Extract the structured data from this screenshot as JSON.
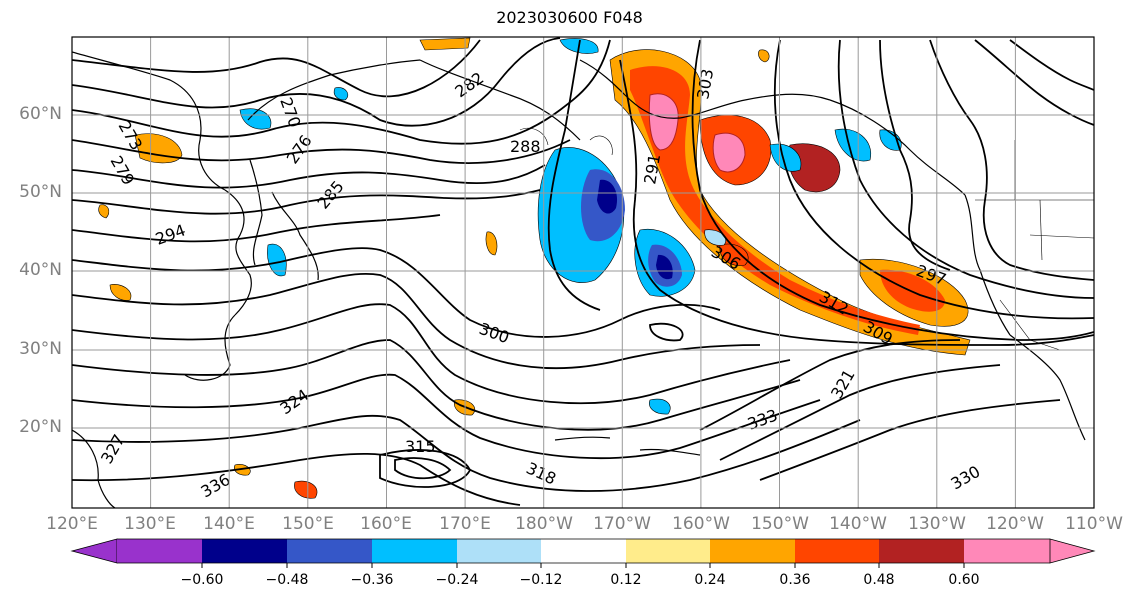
{
  "title": "2023030600 F048",
  "map": {
    "lat_labels": [
      "60°N",
      "50°N",
      "40°N",
      "30°N",
      "20°N"
    ],
    "lon_labels": [
      "120°E",
      "130°E",
      "140°E",
      "150°E",
      "160°E",
      "170°E",
      "180°W",
      "170°W",
      "160°W",
      "150°W",
      "140°W",
      "130°W",
      "120°W",
      "110°W"
    ],
    "contour_labels": [
      "270",
      "273",
      "276",
      "279",
      "282",
      "285",
      "288",
      "291",
      "294",
      "297",
      "300",
      "303",
      "306",
      "309",
      "312",
      "315",
      "318",
      "321",
      "324",
      "327",
      "330",
      "333",
      "336"
    ],
    "grid": true
  },
  "colorbar": {
    "tick_labels": [
      "−0.60",
      "−0.48",
      "−0.36",
      "−0.24",
      "−0.12",
      "0.12",
      "0.24",
      "0.36",
      "0.48",
      "0.60"
    ],
    "colors": [
      "#9932cc",
      "#00008b",
      "#3557c8",
      "#00bfff",
      "#aee0f8",
      "#ffffff",
      "#ffec8b",
      "#ffa500",
      "#ff4500",
      "#b22222",
      "#ff88b8"
    ]
  }
}
